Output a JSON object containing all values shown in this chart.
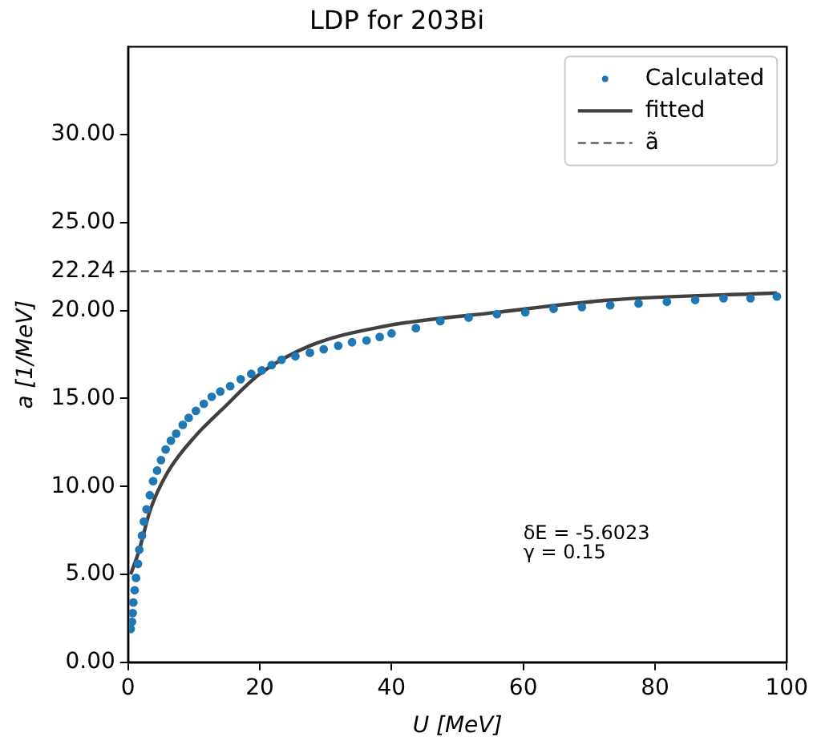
{
  "chart_data": {
    "type": "scatter",
    "title": "LDP for 203Bi",
    "xlabel": "U [MeV]",
    "ylabel": "a [1/MeV]",
    "xlim": [
      0,
      100
    ],
    "xticks": [
      0,
      20,
      40,
      60,
      80,
      100
    ],
    "ylim": [
      0,
      35
    ],
    "yticks": [
      {
        "value": 0,
        "label": "0.00"
      },
      {
        "value": 5,
        "label": "5.00"
      },
      {
        "value": 10,
        "label": "10.00"
      },
      {
        "value": 15,
        "label": "15.00"
      },
      {
        "value": 20,
        "label": "20.00"
      },
      {
        "value": 22.24,
        "label": "22.24"
      },
      {
        "value": 25,
        "label": "25.00"
      },
      {
        "value": 30,
        "label": "30.00"
      }
    ],
    "legend": "top right",
    "grid": false,
    "series": [
      {
        "name": "Calculated",
        "marker": "circle",
        "color": "#1f77b4",
        "x": [
          0.4,
          0.6,
          0.7,
          0.8,
          1.0,
          1.2,
          1.5,
          1.7,
          2.1,
          2.4,
          2.8,
          3.3,
          3.8,
          4.4,
          5.0,
          5.7,
          6.5,
          7.3,
          8.3,
          9.2,
          10.3,
          11.5,
          12.7,
          14.0,
          15.5,
          17.1,
          18.7,
          20.3,
          21.8,
          23.3,
          25.4,
          27.6,
          29.7,
          31.9,
          34.0,
          36.2,
          38.2,
          40.0,
          43.7,
          47.4,
          51.7,
          56.0,
          60.3,
          64.6,
          68.9,
          73.2,
          77.5,
          81.8,
          86.1,
          90.4,
          94.5,
          98.5
        ],
        "values": [
          1.9,
          2.3,
          2.8,
          3.4,
          4.1,
          4.8,
          5.6,
          6.4,
          7.2,
          8.0,
          8.7,
          9.5,
          10.3,
          10.9,
          11.5,
          12.1,
          12.6,
          13.0,
          13.5,
          13.9,
          14.3,
          14.7,
          15.1,
          15.4,
          15.7,
          16.1,
          16.4,
          16.6,
          16.9,
          17.2,
          17.4,
          17.6,
          17.8,
          18.0,
          18.2,
          18.3,
          18.5,
          18.7,
          19.0,
          19.4,
          19.6,
          19.8,
          19.9,
          20.1,
          20.2,
          20.3,
          20.4,
          20.5,
          20.6,
          20.7,
          20.7,
          20.8
        ]
      },
      {
        "name": "fitted",
        "type": "line",
        "marker": "none",
        "line_style": "solid",
        "color": "#404040",
        "x": [
          0.4,
          1.7,
          3.4,
          6.0,
          10.3,
          14.6,
          20.0,
          27.6,
          38.8,
          56.0,
          73.2,
          98.5
        ],
        "values": [
          5.0,
          6.4,
          8.7,
          10.8,
          12.9,
          14.5,
          16.4,
          18.0,
          19.1,
          19.9,
          20.6,
          21.0
        ]
      }
    ],
    "ref_lines": [
      {
        "axis": "y",
        "value": 22.24,
        "label": "ã",
        "color": "#404040",
        "line_style": "dashed"
      }
    ],
    "annotations": [
      "δE = -5.6023",
      "γ = 0.15"
    ]
  }
}
